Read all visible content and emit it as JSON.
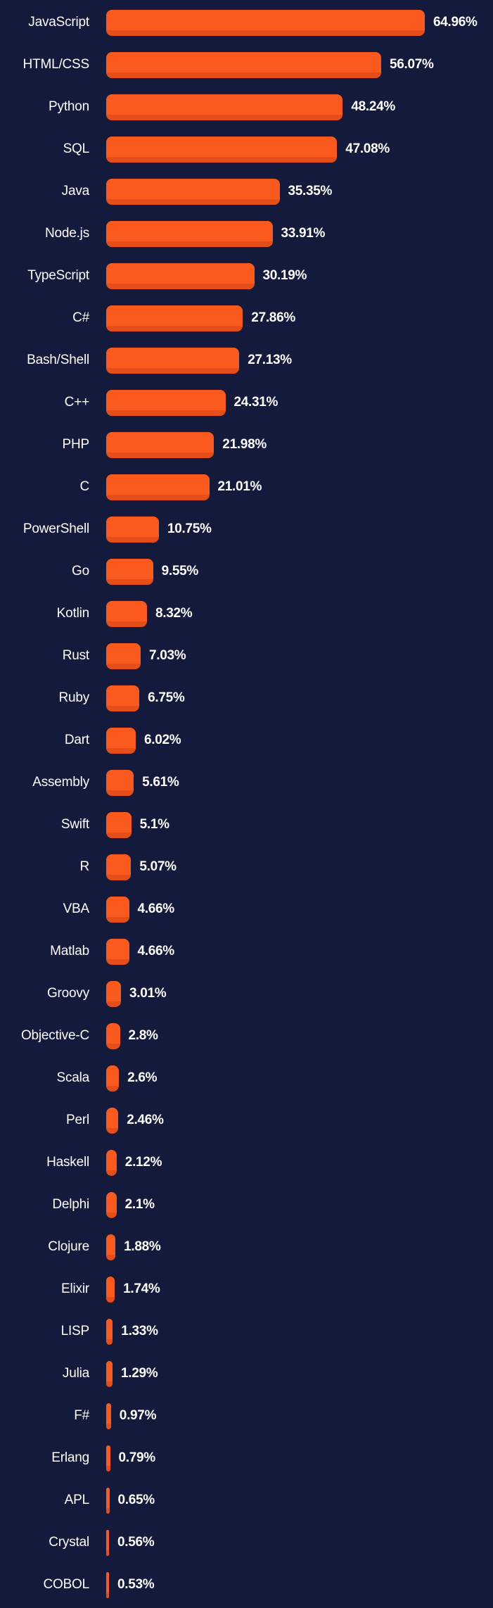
{
  "chart_data": {
    "type": "bar",
    "orientation": "horizontal",
    "categories": [
      "JavaScript",
      "HTML/CSS",
      "Python",
      "SQL",
      "Java",
      "Node.js",
      "TypeScript",
      "C#",
      "Bash/Shell",
      "C++",
      "PHP",
      "C",
      "PowerShell",
      "Go",
      "Kotlin",
      "Rust",
      "Ruby",
      "Dart",
      "Assembly",
      "Swift",
      "R",
      "VBA",
      "Matlab",
      "Groovy",
      "Objective-C",
      "Scala",
      "Perl",
      "Haskell",
      "Delphi",
      "Clojure",
      "Elixir",
      "LISP",
      "Julia",
      "F#",
      "Erlang",
      "APL",
      "Crystal",
      "COBOL"
    ],
    "values": [
      64.96,
      56.07,
      48.24,
      47.08,
      35.35,
      33.91,
      30.19,
      27.86,
      27.13,
      24.31,
      21.98,
      21.01,
      10.75,
      9.55,
      8.32,
      7.03,
      6.75,
      6.02,
      5.61,
      5.1,
      5.07,
      4.66,
      4.66,
      3.01,
      2.8,
      2.6,
      2.46,
      2.12,
      2.1,
      1.88,
      1.74,
      1.33,
      1.29,
      0.97,
      0.79,
      0.65,
      0.56,
      0.53
    ],
    "value_labels": [
      "64.96%",
      "56.07%",
      "48.24%",
      "47.08%",
      "35.35%",
      "33.91%",
      "30.19%",
      "27.86%",
      "27.13%",
      "24.31%",
      "21.98%",
      "21.01%",
      "10.75%",
      "9.55%",
      "8.32%",
      "7.03%",
      "6.75%",
      "6.02%",
      "5.61%",
      "5.1%",
      "5.07%",
      "4.66%",
      "4.66%",
      "3.01%",
      "2.8%",
      "2.6%",
      "2.46%",
      "2.12%",
      "2.1%",
      "1.88%",
      "1.74%",
      "1.33%",
      "1.29%",
      "0.97%",
      "0.79%",
      "0.65%",
      "0.56%",
      "0.53%"
    ],
    "xlim": [
      0,
      78.8
    ],
    "grid": false,
    "legend": false,
    "axes_hidden": true,
    "colors": {
      "background": "#131A3B",
      "bar": "#FA5A1E",
      "bar_shade": "#E64E19",
      "text": "#FFFFFF"
    }
  }
}
